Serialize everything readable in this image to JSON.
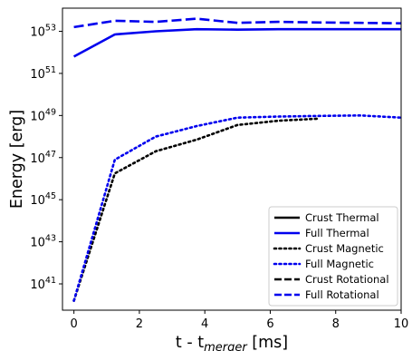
{
  "chart_data": {
    "type": "line",
    "title": "",
    "xlabel": "t - t",
    "xlabel_sub": "merger",
    "xlabel_unit": " [ms]",
    "ylabel": "Energy [erg]",
    "xlim": [
      -0.35,
      10
    ],
    "xticks": [
      0,
      2,
      4,
      6,
      8,
      10
    ],
    "y_log_scale": true,
    "ylim_exp": [
      39.75,
      54.1
    ],
    "yticks_exp": [
      41,
      43,
      45,
      47,
      49,
      51,
      53
    ],
    "ytick_base": "10",
    "grid": false,
    "legend_position": "lower-right",
    "series": [
      {
        "name": "Crust Thermal",
        "color": "#000000",
        "style": "solid",
        "x": [],
        "log10_y": []
      },
      {
        "name": "Full Thermal",
        "color": "#0000ee",
        "style": "solid",
        "x": [
          0,
          1.25,
          2.5,
          3.75,
          5,
          6.25,
          7.5,
          8.75,
          10
        ],
        "log10_y": [
          51.8,
          52.85,
          53.0,
          53.1,
          53.08,
          53.1,
          53.1,
          53.1,
          53.1
        ]
      },
      {
        "name": "Crust Magnetic",
        "color": "#000000",
        "style": "dotted",
        "x": [
          0,
          1.25,
          2.5,
          3.75,
          5,
          6.25,
          7.5
        ],
        "log10_y": [
          40.2,
          46.25,
          47.3,
          47.85,
          48.55,
          48.75,
          48.85
        ]
      },
      {
        "name": "Full Magnetic",
        "color": "#0000ee",
        "style": "dotted",
        "x": [
          0,
          1.25,
          2.5,
          3.75,
          5,
          6.25,
          7.5,
          8.75,
          10
        ],
        "log10_y": [
          40.2,
          46.9,
          48.0,
          48.5,
          48.9,
          48.95,
          48.98,
          49.0,
          48.9
        ]
      },
      {
        "name": "Crust Rotational",
        "color": "#000000",
        "style": "dashed",
        "x": [],
        "log10_y": []
      },
      {
        "name": "Full Rotational",
        "color": "#0000ee",
        "style": "dashed",
        "x": [
          0,
          1.25,
          2.5,
          3.75,
          5,
          6.25,
          7.5,
          8.75,
          10
        ],
        "log10_y": [
          53.2,
          53.5,
          53.45,
          53.6,
          53.4,
          53.45,
          53.42,
          53.4,
          53.38
        ]
      }
    ]
  }
}
